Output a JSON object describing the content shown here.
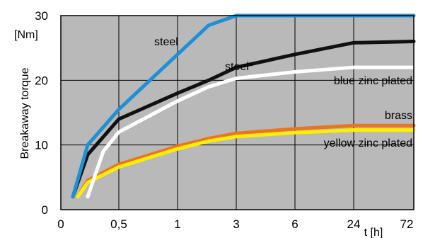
{
  "chart_data": {
    "type": "line",
    "title": "",
    "ylabel": "Breakaway torque",
    "yunit": "[Nm]",
    "xlabel": "t [h]",
    "ylim": [
      0,
      30
    ],
    "yticks": [
      "0",
      "10",
      "20",
      "30"
    ],
    "x_categories": [
      "0",
      "0,5",
      "1",
      "3",
      "6",
      "24",
      "72"
    ],
    "x_scale": "nonlinear (hours, equally spaced category ticks)",
    "grid": true,
    "colors": {
      "plot_bg": "#b9b9b9",
      "grid": "#000000"
    },
    "series": [
      {
        "name": "steel",
        "color": "#1f8fd6",
        "x": [
          "0,1",
          "0,25",
          "0,5",
          "1",
          "2",
          "3",
          "6",
          "24",
          "72"
        ],
        "y": [
          2,
          10,
          15.5,
          24,
          28.5,
          30,
          30,
          30,
          30
        ]
      },
      {
        "name": "steel*",
        "color": "#111111",
        "x": [
          "0,1",
          "0,25",
          "0,5",
          "1",
          "2",
          "3",
          "6",
          "24",
          "72"
        ],
        "y": [
          2,
          8.5,
          14,
          18,
          20,
          22,
          24,
          25.8,
          26
        ]
      },
      {
        "name": "blue zinc plated",
        "color": "#ffffff",
        "x": [
          "0,25",
          "0,4",
          "0,5",
          "1",
          "2",
          "3",
          "6",
          "24",
          "72"
        ],
        "y": [
          2,
          9,
          12,
          16.8,
          19,
          20.3,
          21.3,
          22,
          22
        ]
      },
      {
        "name": "brass",
        "color": "#e8761e",
        "x": [
          "0,15",
          "0,25",
          "0,5",
          "1",
          "2",
          "3",
          "6",
          "24",
          "72"
        ],
        "y": [
          2,
          4.5,
          7,
          9.8,
          11,
          11.8,
          12.5,
          13,
          13
        ]
      },
      {
        "name": "yellow zinc plated",
        "color": "#ffee00",
        "x": [
          "0,15",
          "0,25",
          "0,5",
          "1",
          "2",
          "3",
          "6",
          "24",
          "72"
        ],
        "y": [
          2,
          4.2,
          6.6,
          9.4,
          10.6,
          11.3,
          11.9,
          12.3,
          12.3
        ]
      }
    ]
  }
}
